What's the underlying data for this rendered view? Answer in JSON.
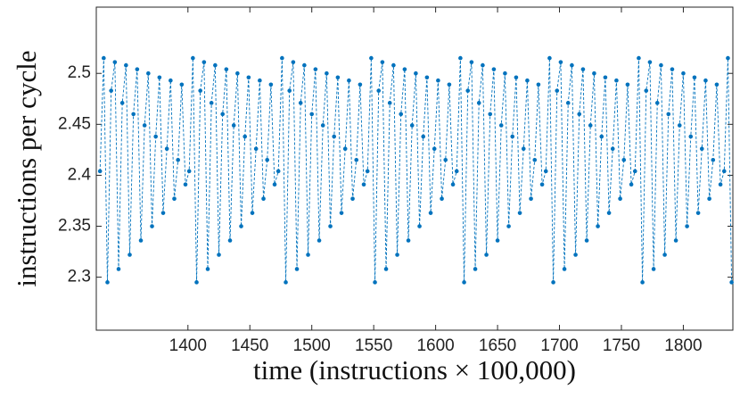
{
  "chart_data": {
    "type": "line",
    "xlabel": "time (instructions × 100,000)",
    "ylabel": "instructions per cycle",
    "xlim": [
      1326,
      1840
    ],
    "ylim": [
      2.248,
      2.565
    ],
    "xticks": [
      1400,
      1450,
      1500,
      1550,
      1600,
      1650,
      1700,
      1750,
      1800
    ],
    "yticks": [
      2.3,
      2.35,
      2.4,
      2.45,
      2.5
    ],
    "x": [
      1329,
      1332,
      1335,
      1338,
      1341,
      1344,
      1347,
      1350,
      1353,
      1356,
      1359,
      1362,
      1365,
      1368,
      1371,
      1374,
      1377,
      1380,
      1383,
      1386,
      1389,
      1392,
      1395,
      1398,
      1401,
      1404,
      1407,
      1410,
      1413,
      1416,
      1419,
      1422,
      1425,
      1428,
      1431,
      1434,
      1437,
      1440,
      1443,
      1446,
      1449,
      1452,
      1455,
      1458,
      1461,
      1464,
      1467,
      1470,
      1473,
      1476,
      1479,
      1482,
      1485,
      1488,
      1491,
      1494,
      1497,
      1500,
      1503,
      1506,
      1509,
      1512,
      1515,
      1518,
      1521,
      1524,
      1527,
      1530,
      1533,
      1536,
      1539,
      1542,
      1545,
      1548,
      1551,
      1554,
      1557,
      1560,
      1563,
      1566,
      1569,
      1572,
      1575,
      1578,
      1581,
      1584,
      1587,
      1590,
      1593,
      1596,
      1599,
      1602,
      1605,
      1608,
      1611,
      1614,
      1617,
      1620,
      1623,
      1626,
      1629,
      1632,
      1635,
      1638,
      1641,
      1644,
      1647,
      1650,
      1653,
      1656,
      1659,
      1662,
      1665,
      1668,
      1671,
      1674,
      1677,
      1680,
      1683,
      1686,
      1689,
      1692,
      1695,
      1698,
      1701,
      1704,
      1707,
      1710,
      1713,
      1716,
      1719,
      1722,
      1725,
      1728,
      1731,
      1734,
      1737,
      1740,
      1743,
      1746,
      1749,
      1752,
      1755,
      1758,
      1761,
      1764,
      1767,
      1770,
      1773,
      1776,
      1779,
      1782,
      1785,
      1788,
      1791,
      1794,
      1797,
      1800,
      1803,
      1806,
      1809,
      1812,
      1815,
      1818,
      1821,
      1824,
      1827,
      1830,
      1833,
      1836,
      1839
    ],
    "series": [
      {
        "color": "#0072bd",
        "values": [
          2.404,
          2.515,
          2.295,
          2.483,
          2.511,
          2.308,
          2.471,
          2.508,
          2.322,
          2.46,
          2.504,
          2.336,
          2.449,
          2.5,
          2.35,
          2.438,
          2.496,
          2.363,
          2.426,
          2.493,
          2.377,
          2.415,
          2.489,
          2.391,
          2.404,
          2.515,
          2.295,
          2.483,
          2.511,
          2.308,
          2.471,
          2.508,
          2.322,
          2.46,
          2.504,
          2.336,
          2.449,
          2.5,
          2.35,
          2.438,
          2.496,
          2.363,
          2.426,
          2.493,
          2.377,
          2.415,
          2.489,
          2.391,
          2.404,
          2.515,
          2.295,
          2.483,
          2.511,
          2.308,
          2.471,
          2.508,
          2.322,
          2.46,
          2.504,
          2.336,
          2.449,
          2.5,
          2.35,
          2.438,
          2.496,
          2.363,
          2.426,
          2.493,
          2.377,
          2.415,
          2.489,
          2.391,
          2.404,
          2.515,
          2.295,
          2.483,
          2.511,
          2.308,
          2.471,
          2.508,
          2.322,
          2.46,
          2.504,
          2.336,
          2.449,
          2.5,
          2.35,
          2.438,
          2.496,
          2.363,
          2.426,
          2.493,
          2.377,
          2.415,
          2.489,
          2.391,
          2.404,
          2.515,
          2.295,
          2.483,
          2.511,
          2.308,
          2.471,
          2.508,
          2.322,
          2.46,
          2.504,
          2.336,
          2.449,
          2.5,
          2.35,
          2.438,
          2.496,
          2.363,
          2.426,
          2.493,
          2.377,
          2.415,
          2.489,
          2.391,
          2.404,
          2.515,
          2.295,
          2.483,
          2.511,
          2.308,
          2.471,
          2.508,
          2.322,
          2.46,
          2.504,
          2.336,
          2.449,
          2.5,
          2.35,
          2.438,
          2.496,
          2.363,
          2.426,
          2.493,
          2.377,
          2.415,
          2.489,
          2.391,
          2.404,
          2.515,
          2.295,
          2.483,
          2.511,
          2.308,
          2.471,
          2.508,
          2.322,
          2.46,
          2.504,
          2.336,
          2.449,
          2.5,
          2.35,
          2.438,
          2.496,
          2.363,
          2.426,
          2.493,
          2.377,
          2.415,
          2.489,
          2.391,
          2.404,
          2.515,
          2.295
        ]
      }
    ]
  }
}
